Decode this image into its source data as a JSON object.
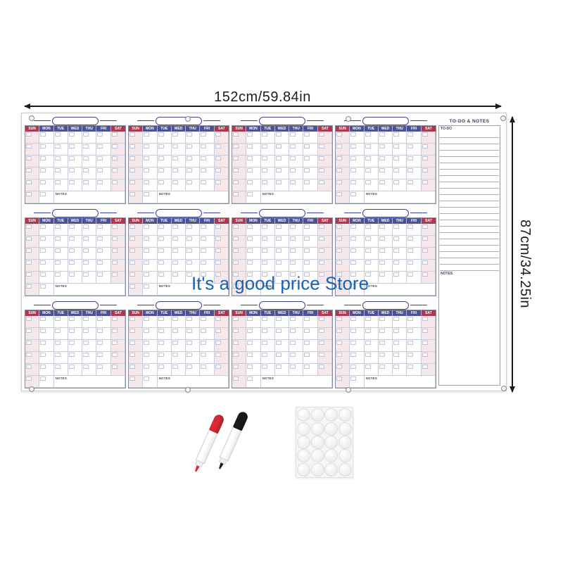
{
  "product": {
    "watermark": "It's a good price Store",
    "width_label": "152cm/59.84in",
    "height_label": "87cm/34.25in"
  },
  "board": {
    "month_count": 12,
    "day_headers": [
      "SUN",
      "MON",
      "TUE",
      "WED",
      "THU",
      "FRI",
      "SAT"
    ],
    "month_notes_label": "NOTES",
    "todo_panel": {
      "title": "TO-DO & NOTES",
      "todo_label": "TO-DO",
      "notes_label": "NOTES",
      "ruled_line_count": 22
    },
    "grommet_count": 8
  },
  "accessories": {
    "markers": [
      {
        "name": "red dry-erase marker",
        "color": "#d92c32"
      },
      {
        "name": "black dry-erase marker",
        "color": "#1b1b1d"
      }
    ],
    "adhesive_dots": {
      "rows": 5,
      "cols": 4,
      "count": 20
    }
  },
  "colors": {
    "header_navy": "#4e5295",
    "header_weekend_red": "#a93a50",
    "weekend_column_pink": "#f6e7eb",
    "watermark_blue": "#1b63b0"
  }
}
